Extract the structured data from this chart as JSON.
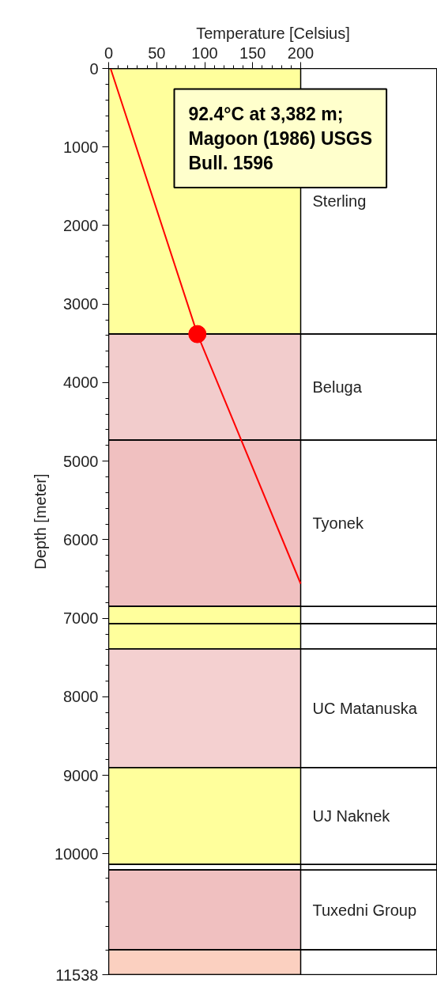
{
  "chart_data": {
    "type": "line",
    "xlabel": "Temperature [Celsius]",
    "ylabel": "Depth [meter]",
    "xlim": [
      0,
      200
    ],
    "xticks": [
      0,
      50,
      100,
      150,
      200
    ],
    "ylim": [
      11538,
      0
    ],
    "yticks": [
      0,
      1000,
      2000,
      3000,
      4000,
      5000,
      6000,
      7000,
      8000,
      9000,
      10000,
      11538
    ],
    "series": [
      {
        "color": "#ff0000",
        "x": [
          2,
          92.4,
          200
        ],
        "values": [
          0,
          3382,
          6560
        ]
      },
      {
        "type": "scatter",
        "color": "#ff0000",
        "marker": "circle",
        "x": [
          92.4
        ],
        "values": [
          3382
        ]
      }
    ],
    "bands": [
      {
        "axis": "y",
        "from": 0,
        "to": 3382,
        "label": "Sterling",
        "color": "#ffff9c"
      },
      {
        "axis": "y",
        "from": 3382,
        "to": 4730,
        "label": "Beluga",
        "color": "#f2cccc"
      },
      {
        "axis": "y",
        "from": 4730,
        "to": 6850,
        "label": "Tyonek",
        "color": "#f0c0c0"
      },
      {
        "axis": "y",
        "from": 6850,
        "to": 7070,
        "color": "#ffff9c"
      },
      {
        "axis": "y",
        "from": 7070,
        "to": 7390,
        "color": "#ffff9c"
      },
      {
        "axis": "y",
        "from": 7390,
        "to": 8900,
        "label": "UC Matanuska",
        "color": "#f4d0d0"
      },
      {
        "axis": "y",
        "from": 8900,
        "to": 10135,
        "label": "UJ Naknek",
        "color": "#ffff9c"
      },
      {
        "axis": "y",
        "from": 10135,
        "to": 10205,
        "color": "#ffffff"
      },
      {
        "axis": "y",
        "from": 10205,
        "to": 11220,
        "label": "Tuxedni Group",
        "color": "#f0c0c0"
      },
      {
        "axis": "y",
        "from": 11220,
        "to": 11538,
        "color": "#fbd0c0"
      }
    ],
    "annotations": [
      "92.4°C at 3,382 m; Magoon (1986) USGS Bull. 1596"
    ],
    "grid": false
  }
}
